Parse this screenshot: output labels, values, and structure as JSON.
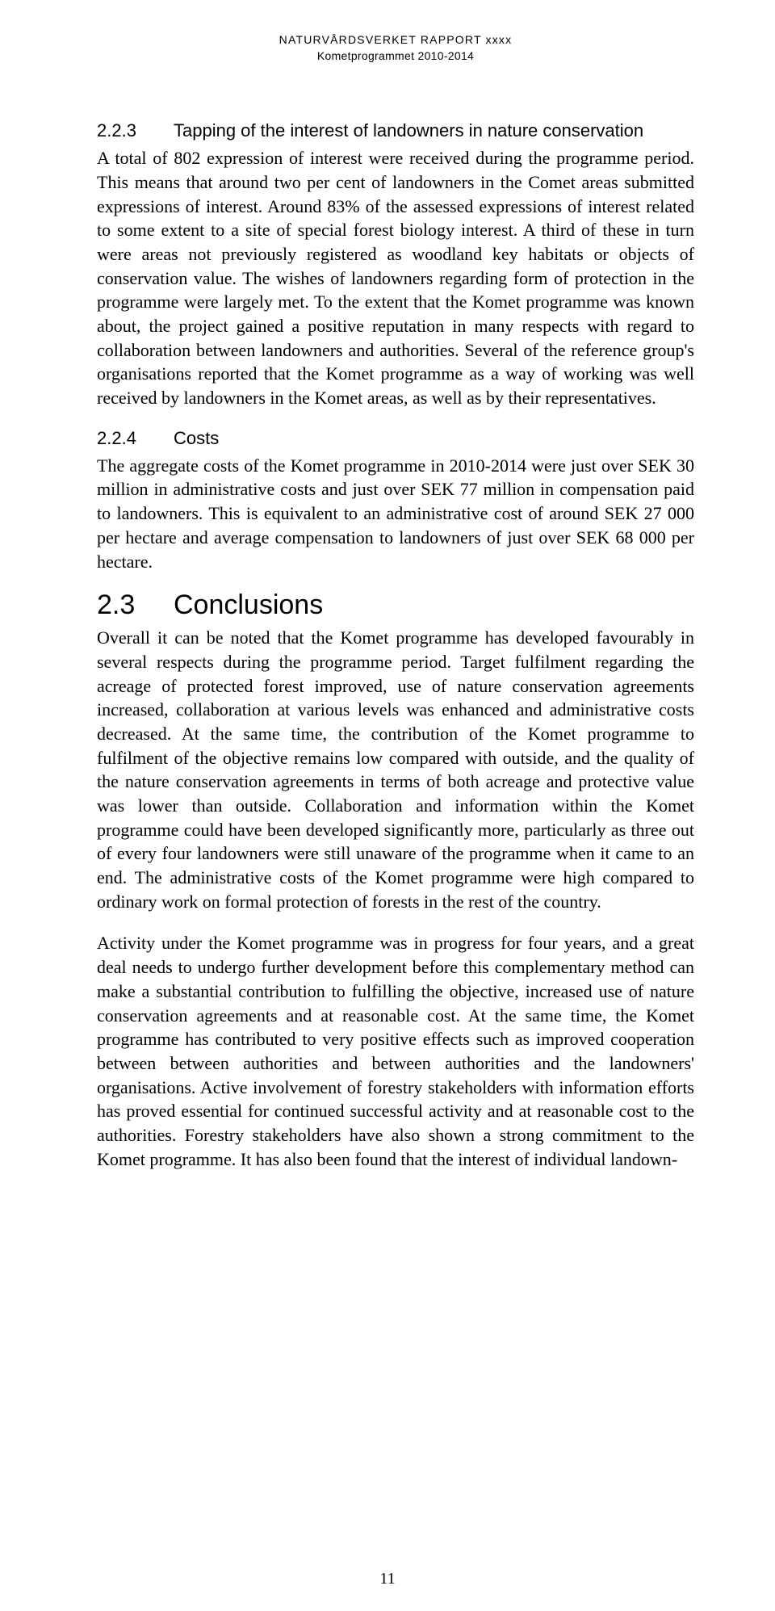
{
  "header": {
    "line1": "NATURVÅRDSVERKET RAPPORT xxxx",
    "line2": "Kometprogrammet 2010-2014"
  },
  "sections": {
    "s223": {
      "number": "2.2.3",
      "title": "Tapping of the interest of landowners in nature conservation",
      "body": "A total of 802 expression of interest were received during the programme period. This means that around two per cent of landowners in the Comet areas submitted expressions of interest. Around 83% of the assessed expressions of interest related to some extent to a site of special forest biology interest. A third of these in turn were areas not previously registered as woodland key habitats or objects of conservation value. The wishes of landowners regarding form of protection in the programme were largely met. To the extent that the Komet programme was known about, the project gained a positive reputation in many respects with regard to collaboration between landowners and authorities. Several of the reference group's organisations reported that the Komet programme as a way of working was well received by landowners in the Komet areas, as well as by their representatives."
    },
    "s224": {
      "number": "2.2.4",
      "title": "Costs",
      "body": "The aggregate costs of the Komet programme in 2010-2014 were just over SEK 30 million in administrative costs and just over SEK 77 million in compensation paid to landowners. This is equivalent to an administrative cost of around SEK 27 000 per hectare and average compensation to landowners of just over SEK 68 000 per hectare."
    },
    "s23": {
      "number": "2.3",
      "title": "Conclusions",
      "body1": "Overall it can be noted that the Komet programme has developed favourably in several respects during the programme period. Target fulfilment regarding the acreage of protected forest improved, use of nature conservation agreements increased, collaboration at various levels was enhanced and administrative costs decreased. At the same time, the contribution of the Komet programme to fulfilment of the objective remains low compared with outside, and the quality of the nature conservation agreements in terms of both acreage and protective value was lower than outside. Collaboration and information within the Komet programme could have been developed significantly more, particularly as three out of every four landowners were still unaware of the programme when it came to an end. The administrative costs of the Komet programme were high compared to ordinary work on formal protection of forests in the rest of the country.",
      "body2": "Activity under the Komet programme was in progress for four years, and a great deal needs to undergo further development before this complementary method can make a substantial contribution to fulfilling the objective, increased use of nature conservation agreements and at reasonable cost. At the same time, the Komet programme has contributed to very positive effects such as improved cooperation between between authorities and between authorities and the landowners' organisations. Active involvement of forestry stakeholders with information efforts has proved essential for continued successful activity and at reasonable cost to the authorities. Forestry stakeholders have also shown a strong commitment to the Komet programme. It has also been found that the interest of individual landown-"
    }
  },
  "pageNumber": "11"
}
